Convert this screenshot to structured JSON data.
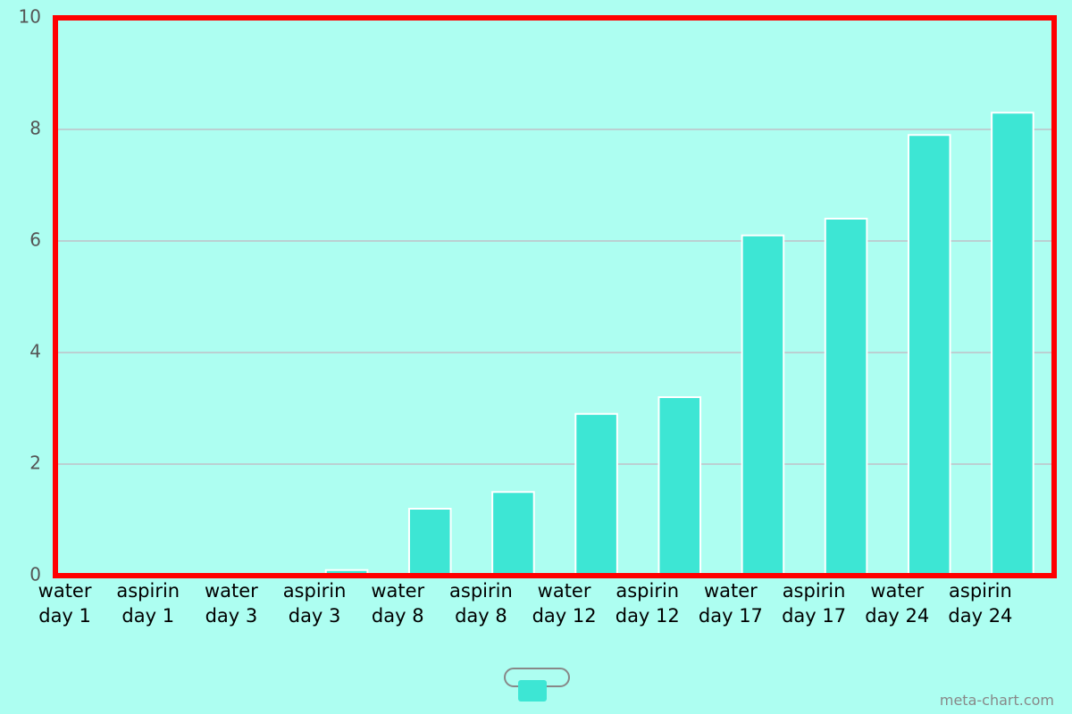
{
  "chart_data": {
    "type": "bar",
    "categories": [
      "water day 1",
      "aspirin day 1",
      "water day 3",
      "aspirin day 3",
      "water day 8",
      "aspirin day 8",
      "water day 12",
      "aspirin day 12",
      "water day 17",
      "aspirin day 17",
      "water day 24",
      "aspirin day 24"
    ],
    "values": [
      0,
      0,
      0,
      0.1,
      1.2,
      1.5,
      2.9,
      3.2,
      6.1,
      6.4,
      7.9,
      8.3
    ],
    "color": "#3de6d4",
    "ylim": [
      0,
      10
    ],
    "yticks": [
      0,
      2,
      4,
      6,
      8,
      10
    ],
    "grid": true,
    "watermark": "meta-chart.com"
  }
}
